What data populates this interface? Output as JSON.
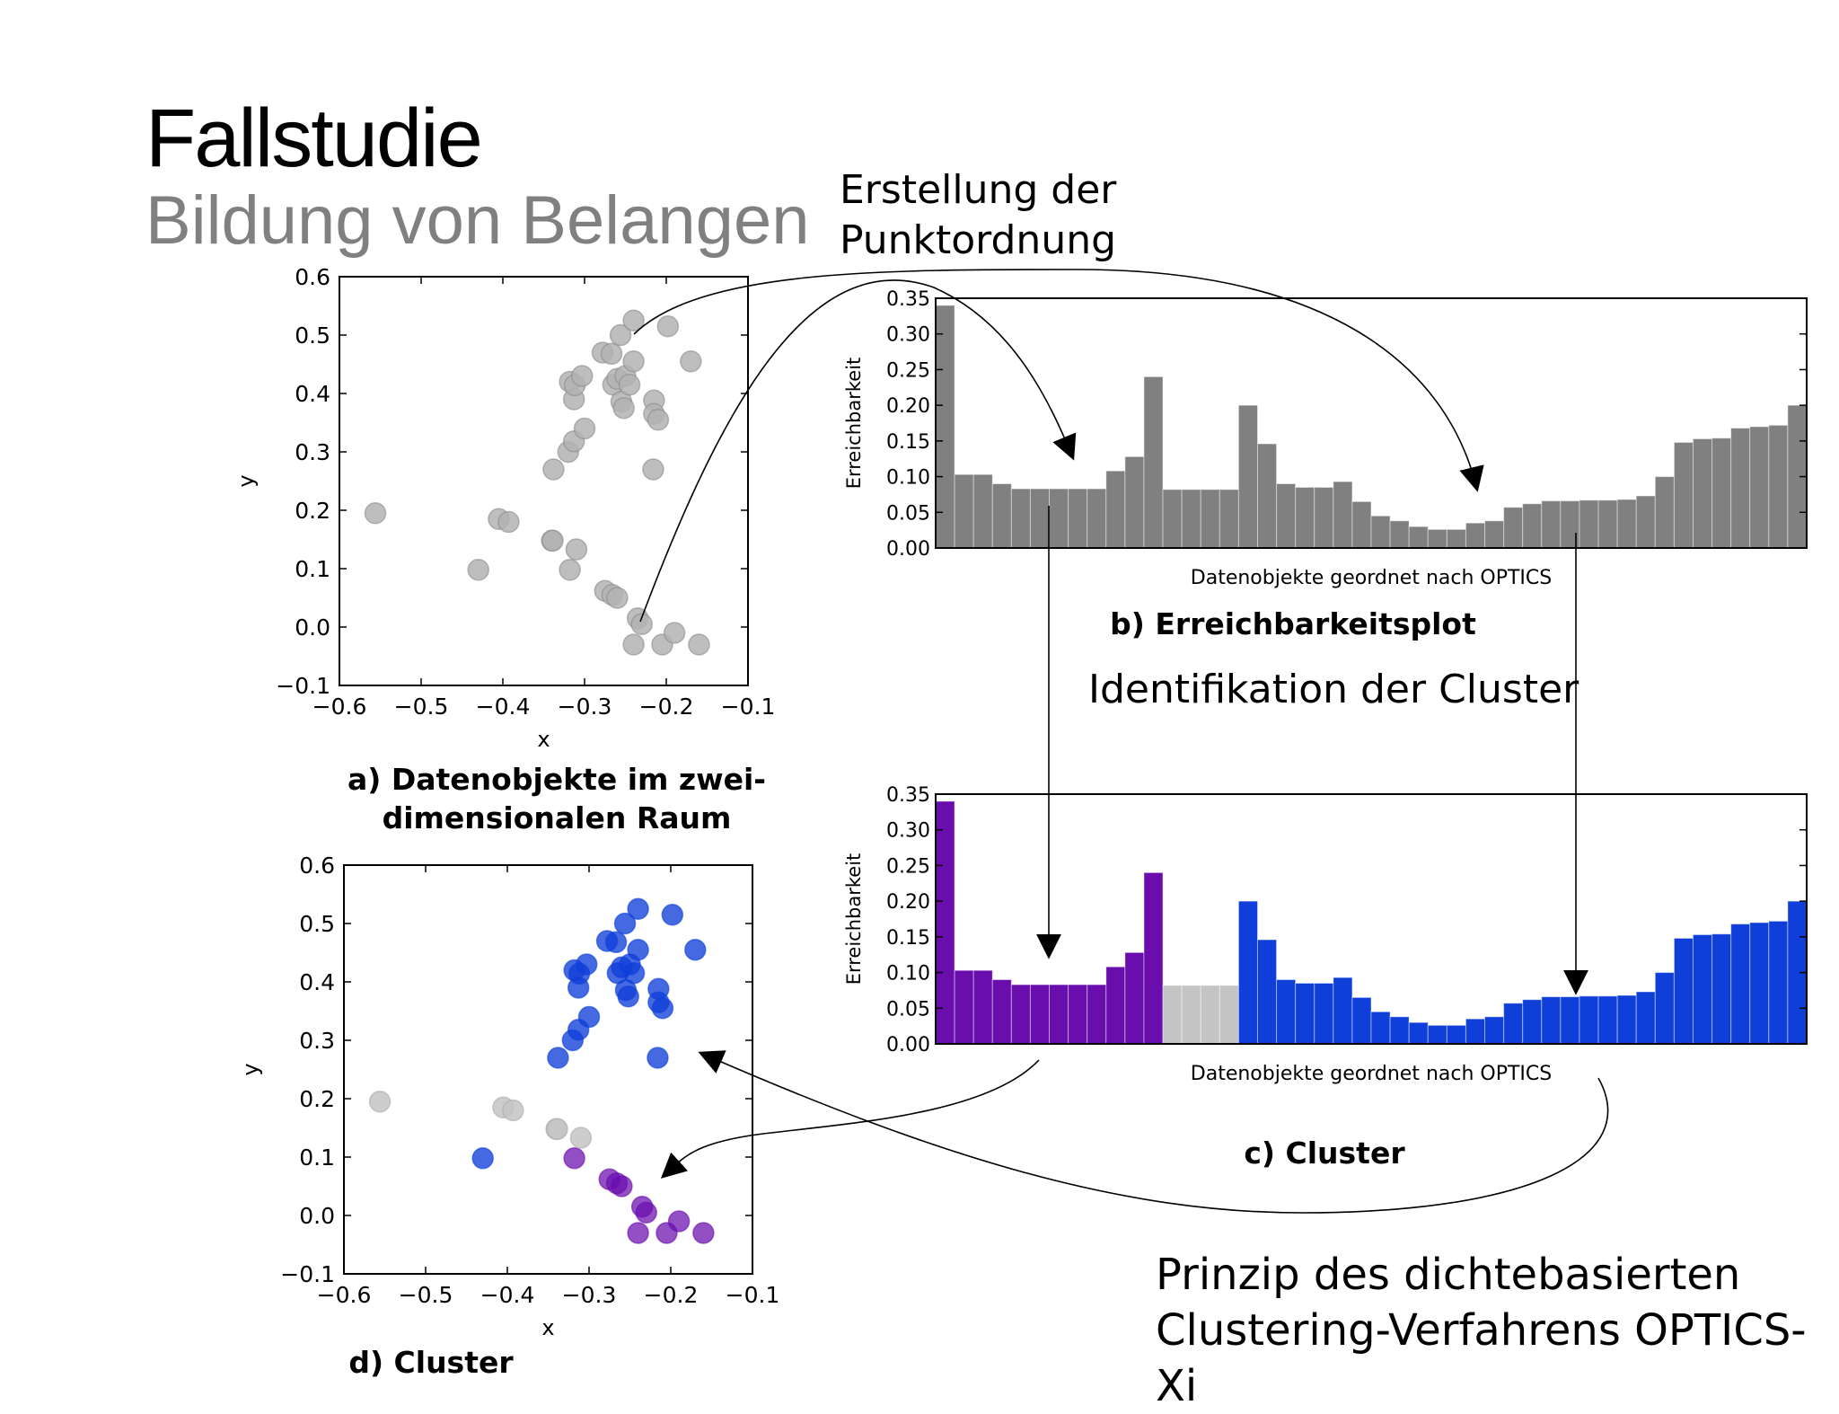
{
  "header": {
    "title": "Fallstudie",
    "subtitle": "Bildung von Belangen"
  },
  "annotations": {
    "ordering": [
      "Erstellung der",
      "Punktordnung"
    ],
    "identification": "Identifikation der Cluster",
    "principle": [
      "Prinzip des dichtebasierten",
      "Clustering-Verfahrens OPTICS-Xi"
    ]
  },
  "captions": {
    "a": [
      "a) Datenobjekte im zwei-",
      "dimensionalen Raum"
    ],
    "b": "b) Erreichbarkeitsplot",
    "c": "c) Cluster",
    "d": "d) Cluster"
  },
  "colors": {
    "gray_bar": "#808080",
    "gray_point": "#b3b3b3",
    "purple": "#6a0dad",
    "blue": "#0f3fd8",
    "noise": "#c4c4c4"
  },
  "chart_data": [
    {
      "id": "a",
      "type": "scatter",
      "xlabel": "x",
      "ylabel": "y",
      "xlim": [
        -0.6,
        -0.1
      ],
      "ylim": [
        -0.1,
        0.6
      ],
      "xticks": [
        "−0.6",
        "−0.5",
        "−0.4",
        "−0.3",
        "−0.2",
        "−0.1"
      ],
      "yticks": [
        "−0.1",
        "0.0",
        "0.1",
        "0.2",
        "0.3",
        "0.4",
        "0.5",
        "0.6"
      ],
      "points": [
        [
          -0.556,
          0.195
        ],
        [
          -0.43,
          0.098
        ],
        [
          -0.405,
          0.185
        ],
        [
          -0.393,
          0.18
        ],
        [
          -0.34,
          0.148
        ],
        [
          -0.339,
          0.148
        ],
        [
          -0.338,
          0.27
        ],
        [
          -0.32,
          0.3
        ],
        [
          -0.318,
          0.098
        ],
        [
          -0.313,
          0.318
        ],
        [
          -0.31,
          0.133
        ],
        [
          -0.318,
          0.42
        ],
        [
          -0.313,
          0.39
        ],
        [
          -0.312,
          0.414
        ],
        [
          -0.303,
          0.43
        ],
        [
          -0.3,
          0.34
        ],
        [
          -0.278,
          0.47
        ],
        [
          -0.265,
          0.415
        ],
        [
          -0.267,
          0.468
        ],
        [
          -0.26,
          0.425
        ],
        [
          -0.255,
          0.386
        ],
        [
          -0.256,
          0.5
        ],
        [
          -0.252,
          0.375
        ],
        [
          -0.25,
          0.43
        ],
        [
          -0.245,
          0.415
        ],
        [
          -0.24,
          0.525
        ],
        [
          -0.24,
          0.455
        ],
        [
          -0.215,
          0.388
        ],
        [
          -0.215,
          0.365
        ],
        [
          -0.21,
          0.355
        ],
        [
          -0.216,
          0.27
        ],
        [
          -0.198,
          0.515
        ],
        [
          -0.17,
          0.455
        ],
        [
          -0.275,
          0.062
        ],
        [
          -0.266,
          0.055
        ],
        [
          -0.26,
          0.05
        ],
        [
          -0.235,
          0.015
        ],
        [
          -0.23,
          0.005
        ],
        [
          -0.24,
          -0.03
        ],
        [
          -0.205,
          -0.03
        ],
        [
          -0.19,
          -0.01
        ],
        [
          -0.16,
          -0.03
        ]
      ],
      "point_groups": [
        "noise",
        "blue",
        "noise",
        "noise",
        "noise",
        "noise",
        "blue",
        "blue",
        "purple",
        "blue",
        "noise",
        "blue",
        "blue",
        "blue",
        "blue",
        "blue",
        "blue",
        "blue",
        "blue",
        "blue",
        "blue",
        "blue",
        "blue",
        "blue",
        "blue",
        "blue",
        "blue",
        "blue",
        "blue",
        "blue",
        "blue",
        "blue",
        "blue",
        "purple",
        "purple",
        "purple",
        "purple",
        "purple",
        "purple",
        "purple",
        "purple",
        "purple"
      ]
    },
    {
      "id": "b",
      "type": "bar",
      "xlabel": "Datenobjekte geordnet nach OPTICS",
      "ylabel": "Erreichbarkeit",
      "ylim": [
        0,
        0.35
      ],
      "yticks": [
        "0.00",
        "0.05",
        "0.10",
        "0.15",
        "0.20",
        "0.25",
        "0.30",
        "0.35"
      ],
      "values": [
        0.34,
        0.103,
        0.103,
        0.09,
        0.083,
        0.083,
        0.083,
        0.083,
        0.083,
        0.108,
        0.128,
        0.24,
        0.082,
        0.082,
        0.082,
        0.082,
        0.2,
        0.146,
        0.09,
        0.085,
        0.085,
        0.093,
        0.065,
        0.045,
        0.038,
        0.03,
        0.026,
        0.026,
        0.035,
        0.038,
        0.057,
        0.062,
        0.066,
        0.066,
        0.067,
        0.067,
        0.068,
        0.073,
        0.1,
        0.148,
        0.153,
        0.154,
        0.168,
        0.17,
        0.172,
        0.2
      ]
    },
    {
      "id": "c",
      "type": "bar",
      "xlabel": "Datenobjekte geordnet nach OPTICS",
      "ylabel": "Erreichbarkeit",
      "ylim": [
        0,
        0.35
      ],
      "yticks": [
        "0.00",
        "0.05",
        "0.10",
        "0.15",
        "0.20",
        "0.25",
        "0.30",
        "0.35"
      ],
      "values": [
        0.34,
        0.103,
        0.103,
        0.09,
        0.083,
        0.083,
        0.083,
        0.083,
        0.083,
        0.108,
        0.128,
        0.24,
        0.082,
        0.082,
        0.082,
        0.082,
        0.2,
        0.146,
        0.09,
        0.085,
        0.085,
        0.093,
        0.065,
        0.045,
        0.038,
        0.03,
        0.026,
        0.026,
        0.035,
        0.038,
        0.057,
        0.062,
        0.066,
        0.066,
        0.067,
        0.067,
        0.068,
        0.073,
        0.1,
        0.148,
        0.153,
        0.154,
        0.168,
        0.17,
        0.172,
        0.2
      ],
      "groups": [
        "purple",
        "purple",
        "purple",
        "purple",
        "purple",
        "purple",
        "purple",
        "purple",
        "purple",
        "purple",
        "purple",
        "purple",
        "noise",
        "noise",
        "noise",
        "noise",
        "blue",
        "blue",
        "blue",
        "blue",
        "blue",
        "blue",
        "blue",
        "blue",
        "blue",
        "blue",
        "blue",
        "blue",
        "blue",
        "blue",
        "blue",
        "blue",
        "blue",
        "blue",
        "blue",
        "blue",
        "blue",
        "blue",
        "blue",
        "blue",
        "blue",
        "blue",
        "blue",
        "blue",
        "blue",
        "blue"
      ]
    },
    {
      "id": "d",
      "type": "scatter",
      "xlabel": "x",
      "ylabel": "y",
      "xlim": [
        -0.6,
        -0.1
      ],
      "ylim": [
        -0.1,
        0.6
      ],
      "xticks": [
        "−0.6",
        "−0.5",
        "−0.4",
        "−0.3",
        "−0.2",
        "−0.1"
      ],
      "yticks": [
        "−0.1",
        "0.0",
        "0.1",
        "0.2",
        "0.3",
        "0.4",
        "0.5",
        "0.6"
      ],
      "points_ref": "a",
      "color_by": "point_groups"
    }
  ]
}
